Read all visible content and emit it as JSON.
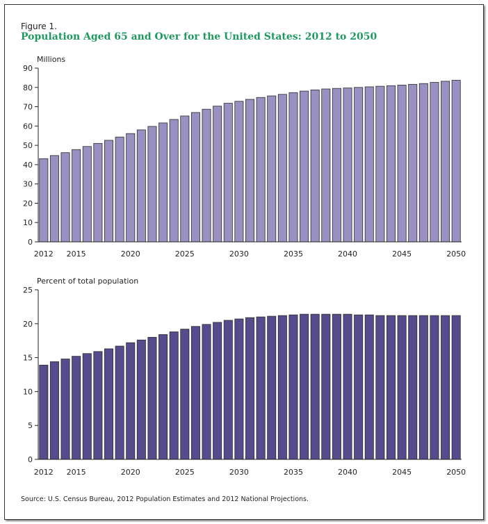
{
  "figure_label": "Figure 1.",
  "title": "Population Aged 65 and Over for the United States: 2012 to 2050",
  "source": "Source: U.S. Census Bureau, 2012 Population Estimates and 2012 National Projections.",
  "colors": {
    "title": "#1f9a5e",
    "bar1": "#9a90c2",
    "bar2": "#564b8c",
    "axis": "#222222",
    "edge": "#2a2a2a"
  },
  "chart_data": [
    {
      "type": "bar",
      "ylabel": "Millions",
      "ylim": [
        0,
        90
      ],
      "yticks": [
        0,
        10,
        20,
        30,
        40,
        50,
        60,
        70,
        80,
        90
      ],
      "x": [
        2012,
        2013,
        2014,
        2015,
        2016,
        2017,
        2018,
        2019,
        2020,
        2021,
        2022,
        2023,
        2024,
        2025,
        2026,
        2027,
        2028,
        2029,
        2030,
        2031,
        2032,
        2033,
        2034,
        2035,
        2036,
        2037,
        2038,
        2039,
        2040,
        2041,
        2042,
        2043,
        2044,
        2045,
        2046,
        2047,
        2048,
        2049,
        2050
      ],
      "xtick_labels": [
        2012,
        2015,
        2020,
        2025,
        2030,
        2035,
        2040,
        2045,
        2050
      ],
      "values": [
        43.1,
        44.7,
        46.2,
        47.8,
        49.4,
        51.0,
        52.6,
        54.3,
        56.1,
        58.0,
        59.8,
        61.6,
        63.4,
        65.2,
        67.0,
        68.7,
        70.3,
        71.8,
        72.8,
        73.8,
        74.8,
        75.6,
        76.4,
        77.3,
        78.1,
        78.7,
        79.2,
        79.5,
        79.7,
        80.0,
        80.3,
        80.6,
        80.9,
        81.2,
        81.6,
        82.0,
        82.6,
        83.2,
        83.7
      ]
    },
    {
      "type": "bar",
      "ylabel": "Percent of total population",
      "ylim": [
        0,
        25
      ],
      "yticks": [
        0,
        5,
        10,
        15,
        20,
        25
      ],
      "x": [
        2012,
        2013,
        2014,
        2015,
        2016,
        2017,
        2018,
        2019,
        2020,
        2021,
        2022,
        2023,
        2024,
        2025,
        2026,
        2027,
        2028,
        2029,
        2030,
        2031,
        2032,
        2033,
        2034,
        2035,
        2036,
        2037,
        2038,
        2039,
        2040,
        2041,
        2042,
        2043,
        2044,
        2045,
        2046,
        2047,
        2048,
        2049,
        2050
      ],
      "xtick_labels": [
        2012,
        2015,
        2020,
        2025,
        2030,
        2035,
        2040,
        2045,
        2050
      ],
      "values": [
        13.9,
        14.4,
        14.8,
        15.2,
        15.6,
        15.9,
        16.3,
        16.7,
        17.2,
        17.6,
        18.0,
        18.4,
        18.8,
        19.2,
        19.6,
        19.9,
        20.2,
        20.5,
        20.7,
        20.9,
        21.0,
        21.1,
        21.2,
        21.3,
        21.4,
        21.4,
        21.4,
        21.4,
        21.4,
        21.3,
        21.3,
        21.2,
        21.2,
        21.2,
        21.2,
        21.2,
        21.2,
        21.2,
        21.2
      ]
    }
  ]
}
